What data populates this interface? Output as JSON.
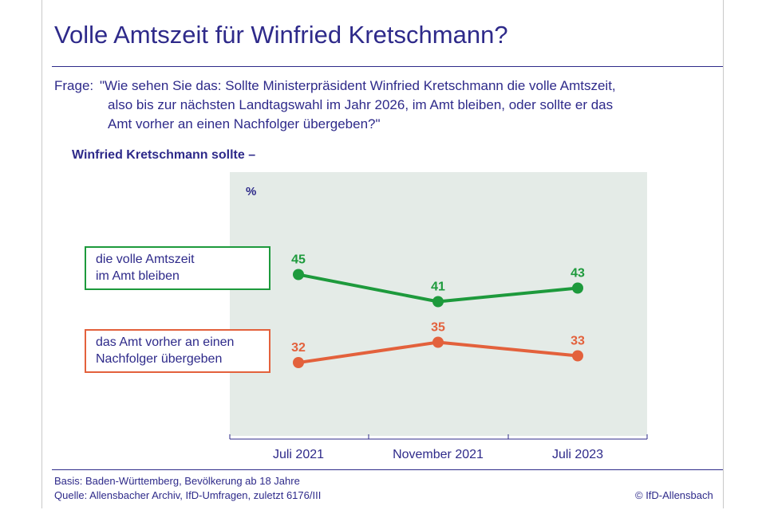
{
  "title": "Volle Amtszeit für Winfried Kretschmann?",
  "question": {
    "label": "Frage:",
    "lines": [
      "\"Wie sehen Sie das: Sollte Ministerpräsident Winfried Kretschmann die volle Amtszeit,",
      "also bis zur nächsten Landtagswahl im Jahr 2026, im Amt bleiben, oder sollte er das",
      "Amt vorher an einen Nachfolger übergeben?\""
    ]
  },
  "subtitle": "Winfried Kretschmann sollte –",
  "chart_data": {
    "type": "line",
    "unit_label": "%",
    "categories": [
      "Juli 2021",
      "November 2021",
      "Juli 2023"
    ],
    "series": [
      {
        "name_lines": [
          "die volle Amtszeit",
          "im Amt bleiben"
        ],
        "values": [
          45,
          41,
          43
        ],
        "color": "#1d9a3c"
      },
      {
        "name_lines": [
          "das Amt vorher an einen",
          "Nachfolger übergeben"
        ],
        "values": [
          32,
          35,
          33
        ],
        "color": "#e3613c"
      }
    ],
    "colors": {
      "plot_background": "#e4ebe7",
      "text": "#2e2a8a"
    }
  },
  "footer": {
    "basis": "Basis: Baden-Württemberg, Bevölkerung ab 18 Jahre",
    "source": "Quelle: Allensbacher Archiv, IfD-Umfragen, zuletzt 6176/III",
    "copyright": "© IfD-Allensbach"
  }
}
